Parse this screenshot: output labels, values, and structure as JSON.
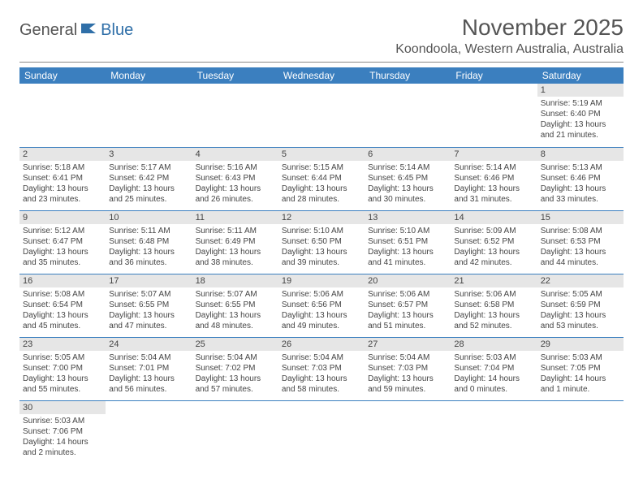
{
  "brand": {
    "part1": "General",
    "part2": "Blue"
  },
  "title": "November 2025",
  "location": "Koondoola, Western Australia, Australia",
  "colors": {
    "header_bg": "#3b7fbf",
    "header_text": "#ffffff",
    "daynum_bg": "#e6e6e6",
    "row_border": "#3b7fbf",
    "body_text": "#444444",
    "title_text": "#555555",
    "logo_accent": "#2f6fa8"
  },
  "layout": {
    "columns": 7,
    "rows": 6,
    "first_day_column_index": 6,
    "days_in_month": 30
  },
  "weekdays": [
    "Sunday",
    "Monday",
    "Tuesday",
    "Wednesday",
    "Thursday",
    "Friday",
    "Saturday"
  ],
  "days": [
    {
      "n": 1,
      "sunrise": "5:19 AM",
      "sunset": "6:40 PM",
      "daylight": "13 hours and 21 minutes."
    },
    {
      "n": 2,
      "sunrise": "5:18 AM",
      "sunset": "6:41 PM",
      "daylight": "13 hours and 23 minutes."
    },
    {
      "n": 3,
      "sunrise": "5:17 AM",
      "sunset": "6:42 PM",
      "daylight": "13 hours and 25 minutes."
    },
    {
      "n": 4,
      "sunrise": "5:16 AM",
      "sunset": "6:43 PM",
      "daylight": "13 hours and 26 minutes."
    },
    {
      "n": 5,
      "sunrise": "5:15 AM",
      "sunset": "6:44 PM",
      "daylight": "13 hours and 28 minutes."
    },
    {
      "n": 6,
      "sunrise": "5:14 AM",
      "sunset": "6:45 PM",
      "daylight": "13 hours and 30 minutes."
    },
    {
      "n": 7,
      "sunrise": "5:14 AM",
      "sunset": "6:46 PM",
      "daylight": "13 hours and 31 minutes."
    },
    {
      "n": 8,
      "sunrise": "5:13 AM",
      "sunset": "6:46 PM",
      "daylight": "13 hours and 33 minutes."
    },
    {
      "n": 9,
      "sunrise": "5:12 AM",
      "sunset": "6:47 PM",
      "daylight": "13 hours and 35 minutes."
    },
    {
      "n": 10,
      "sunrise": "5:11 AM",
      "sunset": "6:48 PM",
      "daylight": "13 hours and 36 minutes."
    },
    {
      "n": 11,
      "sunrise": "5:11 AM",
      "sunset": "6:49 PM",
      "daylight": "13 hours and 38 minutes."
    },
    {
      "n": 12,
      "sunrise": "5:10 AM",
      "sunset": "6:50 PM",
      "daylight": "13 hours and 39 minutes."
    },
    {
      "n": 13,
      "sunrise": "5:10 AM",
      "sunset": "6:51 PM",
      "daylight": "13 hours and 41 minutes."
    },
    {
      "n": 14,
      "sunrise": "5:09 AM",
      "sunset": "6:52 PM",
      "daylight": "13 hours and 42 minutes."
    },
    {
      "n": 15,
      "sunrise": "5:08 AM",
      "sunset": "6:53 PM",
      "daylight": "13 hours and 44 minutes."
    },
    {
      "n": 16,
      "sunrise": "5:08 AM",
      "sunset": "6:54 PM",
      "daylight": "13 hours and 45 minutes."
    },
    {
      "n": 17,
      "sunrise": "5:07 AM",
      "sunset": "6:55 PM",
      "daylight": "13 hours and 47 minutes."
    },
    {
      "n": 18,
      "sunrise": "5:07 AM",
      "sunset": "6:55 PM",
      "daylight": "13 hours and 48 minutes."
    },
    {
      "n": 19,
      "sunrise": "5:06 AM",
      "sunset": "6:56 PM",
      "daylight": "13 hours and 49 minutes."
    },
    {
      "n": 20,
      "sunrise": "5:06 AM",
      "sunset": "6:57 PM",
      "daylight": "13 hours and 51 minutes."
    },
    {
      "n": 21,
      "sunrise": "5:06 AM",
      "sunset": "6:58 PM",
      "daylight": "13 hours and 52 minutes."
    },
    {
      "n": 22,
      "sunrise": "5:05 AM",
      "sunset": "6:59 PM",
      "daylight": "13 hours and 53 minutes."
    },
    {
      "n": 23,
      "sunrise": "5:05 AM",
      "sunset": "7:00 PM",
      "daylight": "13 hours and 55 minutes."
    },
    {
      "n": 24,
      "sunrise": "5:04 AM",
      "sunset": "7:01 PM",
      "daylight": "13 hours and 56 minutes."
    },
    {
      "n": 25,
      "sunrise": "5:04 AM",
      "sunset": "7:02 PM",
      "daylight": "13 hours and 57 minutes."
    },
    {
      "n": 26,
      "sunrise": "5:04 AM",
      "sunset": "7:03 PM",
      "daylight": "13 hours and 58 minutes."
    },
    {
      "n": 27,
      "sunrise": "5:04 AM",
      "sunset": "7:03 PM",
      "daylight": "13 hours and 59 minutes."
    },
    {
      "n": 28,
      "sunrise": "5:03 AM",
      "sunset": "7:04 PM",
      "daylight": "14 hours and 0 minutes."
    },
    {
      "n": 29,
      "sunrise": "5:03 AM",
      "sunset": "7:05 PM",
      "daylight": "14 hours and 1 minute."
    },
    {
      "n": 30,
      "sunrise": "5:03 AM",
      "sunset": "7:06 PM",
      "daylight": "14 hours and 2 minutes."
    }
  ],
  "labels": {
    "sunrise": "Sunrise:",
    "sunset": "Sunset:",
    "daylight": "Daylight:"
  }
}
